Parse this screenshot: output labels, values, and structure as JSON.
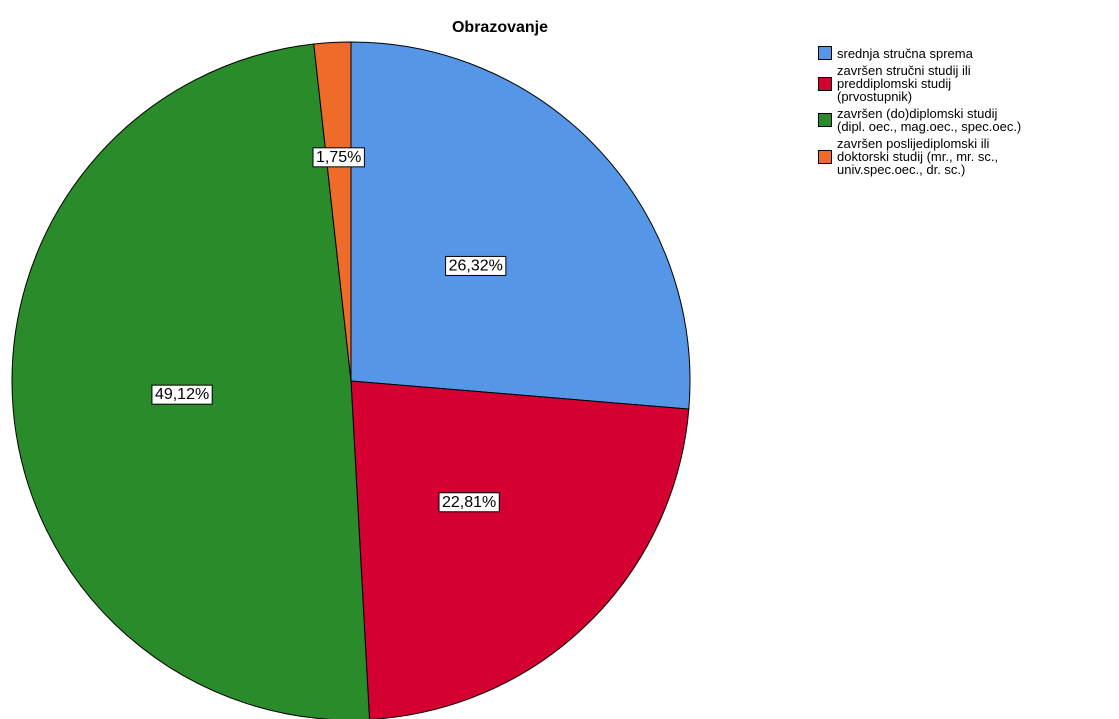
{
  "chart_data": {
    "type": "pie",
    "title": "Obrazovanje",
    "categories": [
      "srednja stručna sprema",
      "završen stručni studij ili\npreddiplomski studij\n(prvostupnik)",
      "završen (do)diplomski studij\n(dipl. oec., mag.oec., spec.oec.)",
      "završen poslijediplomski ili\ndoktorski studij (mr., mr. sc.,\nuniv.spec.oec., dr. sc.)"
    ],
    "values": [
      26.32,
      22.81,
      49.12,
      1.75
    ],
    "value_labels": [
      "26,32%",
      "22,81%",
      "49,12%",
      "1,75%"
    ],
    "colors": [
      "#5597e6",
      "#d50032",
      "#2a8b2a",
      "#ef6b2a"
    ],
    "legend": "top-right"
  }
}
